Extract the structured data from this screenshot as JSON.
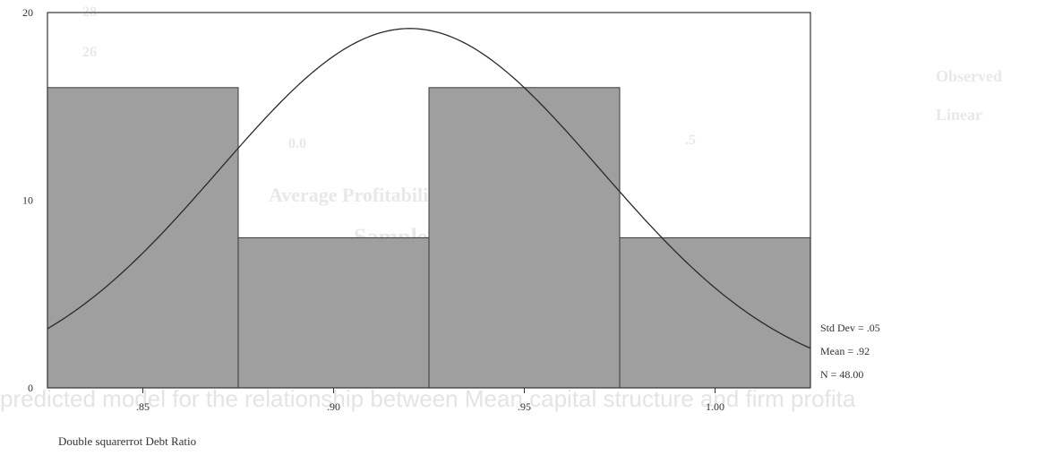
{
  "chart_data": {
    "type": "histogram",
    "title": "",
    "xlabel": "Double squarerrot Debt Ratio",
    "ylabel": "",
    "bins": [
      {
        "x0": 0.825,
        "x1": 0.875,
        "count": 16
      },
      {
        "x0": 0.875,
        "x1": 0.925,
        "count": 8
      },
      {
        "x0": 0.925,
        "x1": 0.975,
        "count": 16
      },
      {
        "x0": 0.975,
        "x1": 1.025,
        "count": 8
      }
    ],
    "xlim": [
      0.825,
      1.025
    ],
    "ylim": [
      0,
      20
    ],
    "xticks": [
      0.85,
      0.9,
      0.95,
      1.0
    ],
    "xtick_labels": [
      ".85",
      ".90",
      ".95",
      "1.00"
    ],
    "yticks": [
      0,
      10,
      20
    ],
    "ytick_labels": [
      "0",
      "10",
      "20"
    ],
    "normal_curve": {
      "mean": 0.92,
      "std": 0.05,
      "n": 48,
      "bin_width": 0.05
    },
    "stats": {
      "std_dev": "Std  Dev = .05",
      "mean": "Mean = .92",
      "n": "N = 48.00"
    },
    "colors": {
      "bar": "#9f9f9f",
      "bar_edge": "#3a3a3a",
      "curve": "#2a2a2a",
      "frame": "#333333"
    },
    "grid": false,
    "legend": "none"
  },
  "background_ghost": {
    "bottom_text": "predicted model for the relationship between Mean capital structure and firm profita",
    "legend_1": "Observed",
    "legend_2": "Linear",
    "axis_title": "Average Profitability",
    "subtitle": "Sample Size (2005)",
    "tick_1": "0.0",
    "tick_2": ".5",
    "tick_3": "28",
    "tick_4": "26"
  }
}
